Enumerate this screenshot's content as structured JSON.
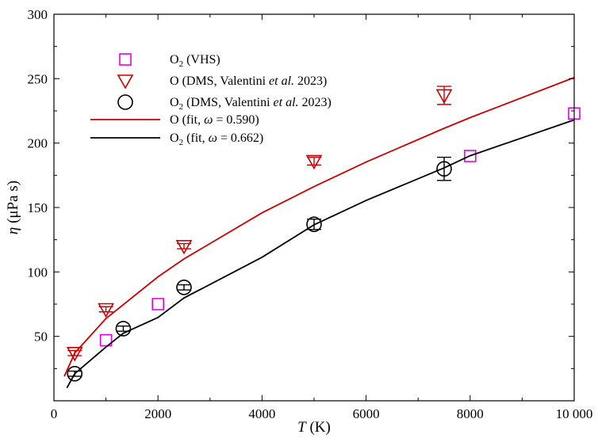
{
  "chart_data": {
    "type": "scatter",
    "title": "",
    "xlabel": {
      "var": "T",
      "unit": " (K)"
    },
    "ylabel": {
      "var": "η",
      "unit": " (μPa s)"
    },
    "xlim": [
      0,
      10000
    ],
    "ylim": [
      0,
      300
    ],
    "xticks": [
      0,
      2000,
      4000,
      6000,
      8000,
      10000
    ],
    "xtick_labels": [
      "0",
      "2000",
      "4000",
      "6000",
      "8000",
      "10 000"
    ],
    "yticks": [
      50,
      100,
      150,
      200,
      250,
      300
    ],
    "ytick_labels": [
      "50",
      "100",
      "150",
      "200",
      "250",
      "300"
    ],
    "grid": false,
    "legend_position": "top-left",
    "series": [
      {
        "key": "o2_vhs",
        "kind": "points",
        "marker": "square",
        "color": "#e600e6",
        "legend": {
          "main": "O",
          "sub": "2",
          "rest": " (VHS)"
        },
        "x": [
          1000,
          2000,
          8000,
          10000
        ],
        "y": [
          47,
          75,
          190,
          223
        ]
      },
      {
        "key": "o_dms",
        "kind": "points",
        "marker": "triangle-down",
        "color": "#cc0000",
        "legend": {
          "main": "O",
          "sub": "",
          "rest": " (DMS, Valentini ",
          "ital": "et al.",
          "tail": " 2023)"
        },
        "x": [
          400,
          1000,
          2500,
          5000,
          7500
        ],
        "y": [
          37,
          71,
          120,
          186,
          237
        ],
        "err": [
          2,
          2,
          2,
          3,
          7
        ]
      },
      {
        "key": "o2_dms",
        "kind": "points",
        "marker": "circle",
        "color": "#000000",
        "legend": {
          "main": "O",
          "sub": "2",
          "rest": " (DMS, Valentini ",
          "ital": "et al.",
          "tail": " 2023)"
        },
        "x": [
          400,
          1333,
          2500,
          5000,
          7500
        ],
        "y": [
          21,
          56,
          88,
          137,
          180
        ],
        "err": [
          2,
          2,
          2,
          4,
          9
        ]
      },
      {
        "key": "o_fit",
        "kind": "line",
        "color": "#cc0000",
        "legend": {
          "main": "O",
          "sub": "",
          "rest": " (fit, ",
          "ital": "ω",
          "tail": " = 0.590)"
        },
        "x": [
          200,
          400,
          1000,
          2000,
          2500,
          4000,
          5000,
          6000,
          7500,
          8000,
          10000
        ],
        "y": [
          19,
          37,
          63.8,
          96.2,
          110.1,
          145.9,
          166.2,
          185.3,
          211.5,
          219.8,
          250.9
        ]
      },
      {
        "key": "o2_fit",
        "kind": "line",
        "color": "#000000",
        "legend": {
          "main": "O",
          "sub": "2",
          "rest": " (fit, ",
          "ital": "ω",
          "tail": " = 0.662)"
        },
        "x": [
          250,
          400,
          1000,
          1333,
          2000,
          2500,
          4000,
          5000,
          6000,
          7500,
          8000,
          10000
        ],
        "y": [
          10,
          21,
          41.7,
          52.4,
          64.7,
          79.8,
          111.4,
          136.6,
          155.5,
          180.8,
          190.2,
          218
        ]
      }
    ]
  }
}
